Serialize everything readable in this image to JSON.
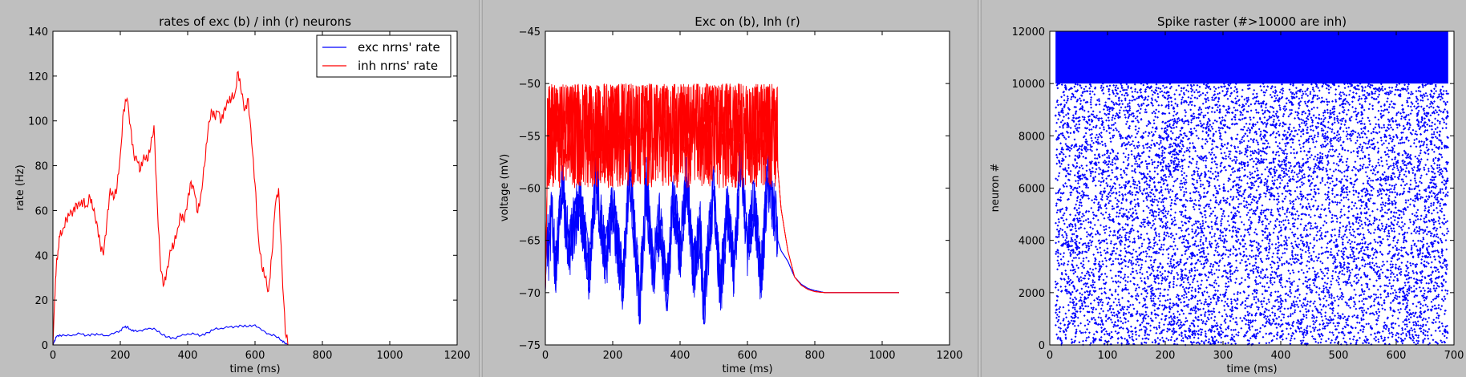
{
  "chart_data": [
    {
      "type": "line",
      "title": "rates of exc (b) / inh (r) neurons",
      "xlabel": "time (ms)",
      "ylabel": "rate (Hz)",
      "xlim": [
        0,
        1200
      ],
      "ylim": [
        0,
        140
      ],
      "xticks": [
        "0",
        "200",
        "400",
        "600",
        "800",
        "1000",
        "1200"
      ],
      "yticks": [
        "0",
        "20",
        "40",
        "60",
        "80",
        "100",
        "120",
        "140"
      ],
      "legend": "top-right",
      "series": [
        {
          "name": "exc nrns' rate",
          "color": "#0000ff",
          "x": [
            0,
            5,
            10,
            20,
            40,
            60,
            80,
            100,
            120,
            140,
            160,
            180,
            200,
            210,
            220,
            230,
            240,
            260,
            280,
            300,
            320,
            340,
            360,
            380,
            400,
            420,
            440,
            460,
            480,
            500,
            520,
            540,
            560,
            580,
            600,
            620,
            640,
            660,
            680,
            690,
            700,
            800,
            900,
            1000,
            1050
          ],
          "y": [
            0,
            2,
            3.5,
            4.5,
            4,
            4.5,
            5,
            4.2,
            4.8,
            4.5,
            4.2,
            5,
            6.5,
            7.8,
            8,
            7,
            6,
            6.5,
            7,
            7.5,
            5,
            3.5,
            3,
            4,
            5,
            4.8,
            4.2,
            5.5,
            7,
            7.5,
            7.8,
            8.2,
            8.5,
            8.2,
            9,
            6.5,
            5,
            4,
            2,
            0.5,
            0,
            0,
            0,
            0,
            0
          ]
        },
        {
          "name": "inh nrns' rate",
          "color": "#ff0000",
          "x": [
            0,
            5,
            10,
            15,
            20,
            30,
            40,
            50,
            60,
            70,
            80,
            90,
            100,
            110,
            120,
            130,
            140,
            150,
            160,
            170,
            180,
            190,
            200,
            210,
            220,
            230,
            240,
            250,
            260,
            270,
            280,
            290,
            300,
            310,
            320,
            330,
            340,
            350,
            360,
            370,
            380,
            390,
            400,
            410,
            420,
            430,
            440,
            450,
            460,
            470,
            480,
            490,
            500,
            510,
            520,
            530,
            540,
            550,
            560,
            570,
            580,
            590,
            600,
            610,
            620,
            630,
            640,
            650,
            660,
            670,
            680,
            690,
            700,
            800,
            900,
            1000,
            1050
          ],
          "y": [
            0,
            20,
            35,
            42,
            48,
            52,
            56,
            58,
            60,
            63,
            62,
            64,
            62,
            66,
            60,
            55,
            45,
            40,
            55,
            70,
            65,
            70,
            85,
            105,
            110,
            98,
            85,
            82,
            78,
            85,
            82,
            88,
            98,
            62,
            33,
            27,
            35,
            42,
            45,
            52,
            58,
            55,
            65,
            73,
            68,
            59,
            68,
            80,
            95,
            105,
            102,
            104,
            100,
            106,
            108,
            110,
            112,
            122,
            112,
            105,
            110,
            90,
            72,
            48,
            35,
            30,
            24,
            40,
            62,
            70,
            35,
            5,
            0,
            0,
            0,
            0,
            0
          ]
        }
      ]
    },
    {
      "type": "line",
      "title": "Exc on (b), Inh (r)",
      "xlabel": "time (ms)",
      "ylabel": "voltage (mV)",
      "xlim": [
        0,
        1200
      ],
      "ylim": [
        -75,
        -45
      ],
      "xticks": [
        "0",
        "200",
        "400",
        "600",
        "800",
        "1000",
        "1200"
      ],
      "yticks": [
        "−75",
        "−70",
        "−65",
        "−60",
        "−55",
        "−50",
        "−45"
      ],
      "series": [
        {
          "color": "#0000ff",
          "x": [
            0,
            5,
            10,
            20,
            30,
            50,
            70,
            100,
            130,
            150,
            180,
            200,
            230,
            250,
            280,
            300,
            320,
            340,
            360,
            380,
            400,
            420,
            440,
            460,
            470,
            480,
            500,
            520,
            540,
            560,
            580,
            600,
            620,
            640,
            660,
            680,
            690,
            700,
            720,
            740,
            760,
            780,
            800,
            830,
            900,
            1000,
            1050
          ],
          "y": [
            -70,
            -64,
            -66,
            -62,
            -68,
            -60,
            -66,
            -61,
            -68,
            -59,
            -67,
            -62,
            -69,
            -58,
            -71,
            -60,
            -68,
            -63,
            -70,
            -61,
            -66,
            -59,
            -68,
            -64,
            -72,
            -67,
            -60,
            -70,
            -62,
            -68,
            -57,
            -66,
            -61,
            -69,
            -59,
            -62,
            -65,
            -66,
            -67,
            -68.5,
            -69.2,
            -69.6,
            -69.8,
            -70,
            -70,
            -70,
            -70
          ]
        },
        {
          "color": "#ff0000",
          "x": [
            0,
            5,
            10,
            20,
            30,
            50,
            70,
            100,
            130,
            150,
            180,
            200,
            230,
            250,
            280,
            300,
            320,
            340,
            360,
            380,
            400,
            420,
            440,
            460,
            480,
            500,
            520,
            540,
            560,
            580,
            600,
            620,
            640,
            660,
            680,
            690,
            700,
            720,
            740,
            760,
            780,
            800,
            830,
            900,
            1000,
            1050
          ],
          "y": [
            -70,
            -60,
            -50,
            -57,
            -52,
            -58,
            -50,
            -54,
            -60,
            -51,
            -56,
            -50,
            -59,
            -53,
            -50,
            -57,
            -51,
            -60,
            -52,
            -55,
            -50,
            -58,
            -51,
            -56,
            -50,
            -59,
            -52,
            -54,
            -50,
            -57,
            -51,
            -58,
            -50,
            -55,
            -52,
            -58,
            -62,
            -66,
            -68.5,
            -69.3,
            -69.7,
            -69.9,
            -70,
            -70,
            -70,
            -70
          ]
        }
      ]
    },
    {
      "type": "scatter",
      "title": "Spike raster (#>10000 are inh)",
      "xlabel": "time (ms)",
      "ylabel": "neuron #",
      "xlim": [
        0,
        700
      ],
      "ylim": [
        0,
        12000
      ],
      "xticks": [
        "0",
        "100",
        "200",
        "300",
        "400",
        "500",
        "600",
        "700"
      ],
      "yticks": [
        "0",
        "2000",
        "4000",
        "6000",
        "8000",
        "10000",
        "12000"
      ],
      "marker_color": "#0000ff",
      "spike_time_range": [
        10,
        690
      ],
      "dense_inh_block": [
        10000,
        12000
      ]
    }
  ]
}
